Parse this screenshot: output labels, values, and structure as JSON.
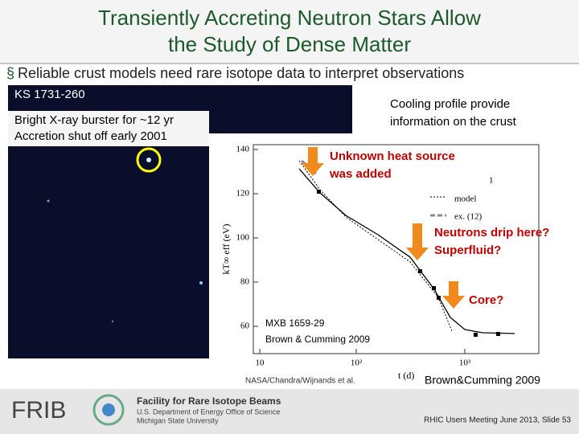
{
  "header": {
    "title_lines": [
      "Transiently Accreting Neutron Stars Allow",
      "the Study of Dense Matter"
    ]
  },
  "bullet": "Reliable crust models need rare isotope data to interpret observations",
  "image": {
    "source_name": "KS 1731-260",
    "notes": [
      "Bright X-ray burster for ~12 yr",
      "Accretion shut off early 2001"
    ],
    "credit": "NASA/Chandra/Wijnands et al."
  },
  "cooling_text": [
    "Cooling profile provide",
    "information on the crust"
  ],
  "plot": {
    "yticks": [
      "140",
      "120",
      "100",
      "80",
      "60"
    ],
    "xticks": [
      "10",
      "10²",
      "10³"
    ],
    "ylabel": "kT∞ eff (eV)",
    "xlabel": "t (d)",
    "legend": [
      "model",
      "ex. (12)"
    ],
    "panel_number": "1",
    "callouts": [
      [
        "Unknown heat source",
        "was added"
      ],
      [
        "Neutrons drip here?",
        "Superfluid?"
      ],
      [
        "Core?"
      ]
    ],
    "source": [
      "MXB 1659-29",
      "Brown & Cumming 2009"
    ],
    "credit": "Brown&Cumming 2009"
  },
  "footer": {
    "logo": "FRIB",
    "org": [
      "Facility for Rare Isotope Beams",
      "U.S. Department of Energy Office of Science",
      "Michigan State University"
    ],
    "slide": "RHIC Users Meeting June 2013, Slide 53"
  }
}
